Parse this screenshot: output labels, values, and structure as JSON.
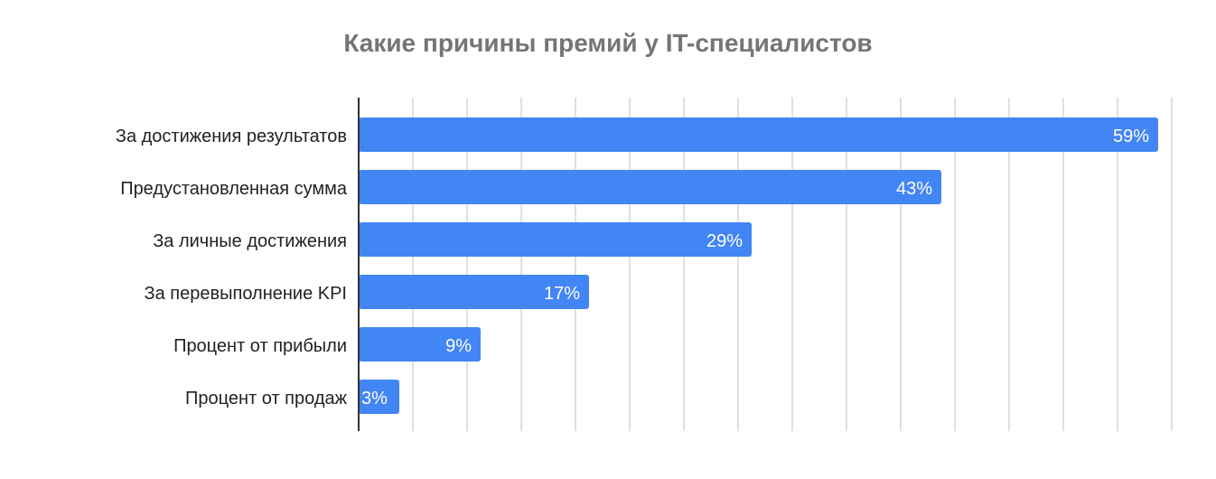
{
  "chart_data": {
    "type": "bar",
    "orientation": "horizontal",
    "title": "Какие причины премий у IT-специалистов",
    "categories": [
      "За достижения результатов",
      "Предустановленная сумма",
      "За личные достижения",
      "За перевыполнение KPI",
      "Процент от прибыли",
      "Процент от продаж"
    ],
    "values": [
      59,
      43,
      29,
      17,
      9,
      3
    ],
    "data_labels": [
      "59%",
      "43%",
      "29%",
      "17%",
      "9%",
      "3%"
    ],
    "xlim": [
      0,
      60
    ],
    "grid_step": 4,
    "grid": true,
    "legend": "none",
    "colors": {
      "bar": "#4285f4",
      "grid": "#e0e0e0",
      "axis": "#333333",
      "title": "#757575",
      "label": "#222222"
    }
  }
}
